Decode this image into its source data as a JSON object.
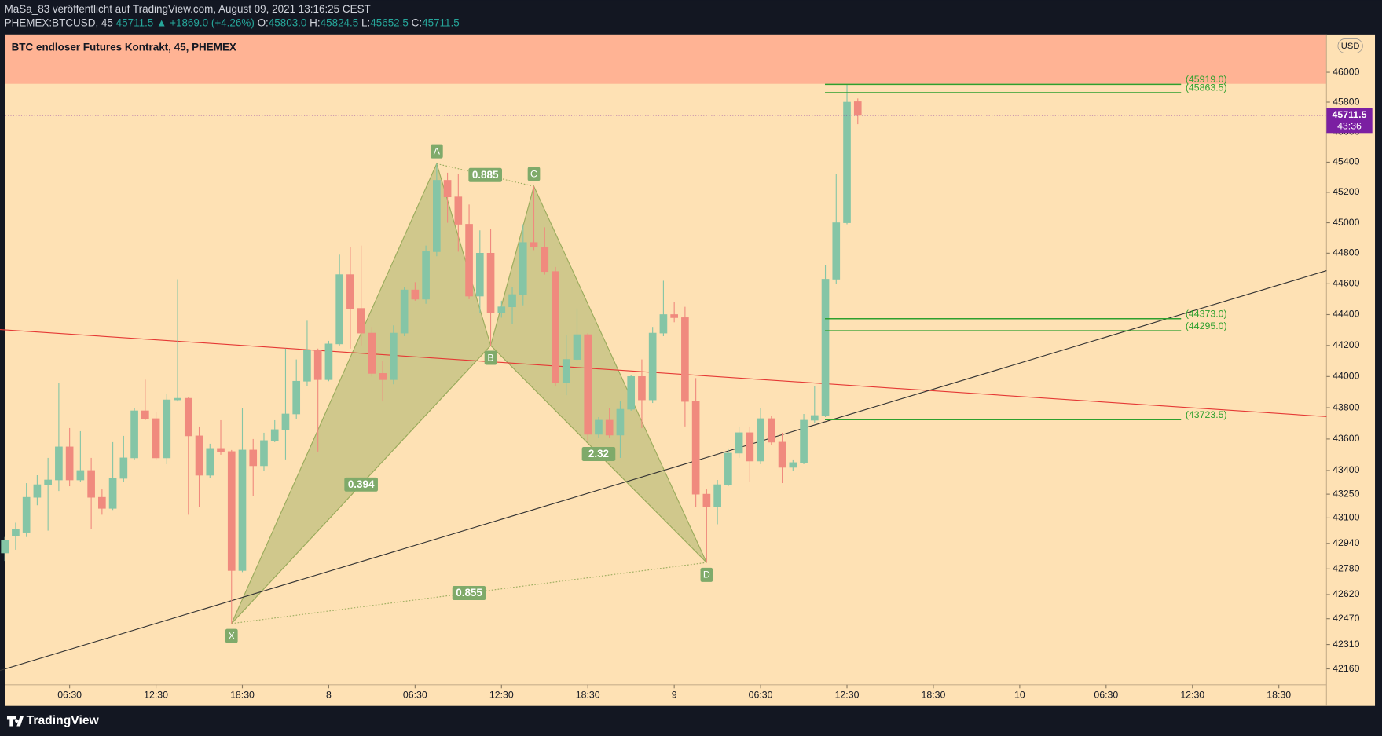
{
  "header": {
    "publisher": "MaSa_83 veröffentlicht auf TradingView.com, August 09, 2021 13:16:25 CEST",
    "symbol": "PHEMEX:BTCUSD, 45",
    "last": "45711.5",
    "change": "▲ +1869.0 (+4.26%)",
    "ohlc": [
      {
        "label": "O:",
        "value": "45803.0"
      },
      {
        "label": "H:",
        "value": "45824.5"
      },
      {
        "label": "L:",
        "value": "45652.5"
      },
      {
        "label": "C:",
        "value": "45711.5"
      }
    ]
  },
  "footer": {
    "brand": "TradingView"
  },
  "chart_data": {
    "type": "candlestick",
    "title": "BTC endloser Futures Kontrakt, 45, PHEMEX",
    "currency": "USD",
    "up_color": "#85c5a6",
    "down_color": "#f08a7e",
    "x": [
      2,
      2.75,
      3.5,
      4.25,
      5,
      5.75,
      6.5,
      7.25,
      8,
      8.75,
      9.5,
      10.25,
      11,
      11.75,
      12.5,
      13.25,
      14,
      14.75,
      15.5,
      16.25,
      17,
      17.75,
      18.5,
      19.25,
      20,
      20.75,
      21.5,
      22.25,
      23,
      23.75,
      24.5,
      25.25,
      26,
      26.75,
      27.5,
      28.25,
      29,
      29.75,
      30.5,
      31.25,
      32,
      32.75,
      33.5,
      34.25,
      35,
      35.75,
      36.5,
      37.25,
      38,
      38.75,
      39.5,
      40.25,
      41,
      41.75,
      42.5,
      43.25,
      44,
      44.75,
      45.5,
      46.25,
      47,
      47.75,
      48.5,
      49.25,
      50,
      50.75,
      51.5,
      52.25,
      53,
      53.75,
      54.5,
      55.25,
      56,
      56.75,
      57.5,
      58.25,
      59,
      59.75,
      60.5,
      61.25
    ],
    "open": [
      42880,
      42990,
      43010,
      43230,
      43310,
      43340,
      43550,
      43340,
      43400,
      43230,
      43160,
      43350,
      43480,
      43780,
      43730,
      43480,
      43850,
      43860,
      43620,
      43370,
      43540,
      43520,
      42770,
      43530,
      43430,
      43590,
      43660,
      43760,
      43970,
      44170,
      43980,
      44210,
      44660,
      44440,
      44280,
      44020,
      43980,
      44280,
      44560,
      44500,
      44810,
      45280,
      45170,
      44990,
      44520,
      44800,
      44410,
      44450,
      44530,
      44870,
      44840,
      44680,
      43960,
      44110,
      44270,
      43630,
      43720,
      43625,
      43790,
      44000,
      43850,
      44280,
      44400,
      44380,
      43840,
      43250,
      43170,
      43310,
      43510,
      43640,
      43460,
      43730,
      43580,
      43420,
      43450,
      43720,
      43750,
      44630,
      45000,
      45803.0
    ],
    "high": [
      42980,
      43070,
      43320,
      43370,
      43480,
      43960,
      43670,
      43650,
      43480,
      43280,
      43580,
      43620,
      43800,
      43980,
      43770,
      43890,
      44630,
      43870,
      43680,
      43570,
      43720,
      43530,
      43800,
      43600,
      43640,
      43720,
      44180,
      44110,
      44360,
      44180,
      44230,
      44790,
      44840,
      44850,
      44320,
      44100,
      44330,
      44580,
      44610,
      44850,
      45390,
      45330,
      45320,
      45120,
      44950,
      44960,
      44490,
      44580,
      44990,
      45240,
      44970,
      44710,
      44270,
      44440,
      44280,
      43740,
      43800,
      43840,
      44010,
      44110,
      44320,
      44620,
      44480,
      44450,
      43990,
      43280,
      43340,
      43540,
      43680,
      43680,
      43800,
      43750,
      43640,
      43470,
      43760,
      43940,
      44720,
      45320,
      45919,
      45824.5
    ],
    "low": [
      42830,
      42900,
      42980,
      43180,
      43020,
      43270,
      43300,
      43330,
      43030,
      43120,
      43150,
      43330,
      43470,
      43720,
      43470,
      43440,
      43840,
      43120,
      43170,
      43350,
      43500,
      42440,
      42760,
      43240,
      43400,
      43580,
      43470,
      43730,
      43940,
      43520,
      43970,
      44200,
      44180,
      44200,
      44000,
      43840,
      43950,
      44260,
      44490,
      44470,
      44780,
      45000,
      44810,
      44500,
      44410,
      44200,
      44380,
      44340,
      44460,
      44820,
      44660,
      43940,
      43880,
      44100,
      43590,
      43610,
      43610,
      43480,
      43780,
      43670,
      43830,
      44260,
      44350,
      43680,
      43170,
      42820,
      43060,
      43300,
      43480,
      43330,
      43440,
      43560,
      43320,
      43400,
      43440,
      43700,
      43740,
      44600,
      44990,
      45652.5
    ],
    "close": [
      42960,
      43030,
      43230,
      43310,
      43340,
      43550,
      43340,
      43400,
      43230,
      43160,
      43350,
      43480,
      43780,
      43730,
      43480,
      43850,
      43860,
      43620,
      43370,
      43540,
      43520,
      42770,
      43530,
      43430,
      43590,
      43660,
      43760,
      43970,
      44170,
      43980,
      44210,
      44660,
      44440,
      44280,
      44020,
      43980,
      44280,
      44560,
      44500,
      44810,
      45280,
      45170,
      44990,
      44520,
      44800,
      44410,
      44450,
      44530,
      44870,
      44840,
      44680,
      43960,
      44110,
      44270,
      43630,
      43720,
      43625,
      43790,
      44000,
      43850,
      44280,
      44400,
      44380,
      43840,
      43250,
      43170,
      43310,
      43510,
      43640,
      43460,
      43730,
      43580,
      43420,
      43450,
      43720,
      43750,
      44630,
      45000,
      45800,
      45711.5
    ],
    "xlim": [
      2.03,
      93.81
    ],
    "xticks": [
      {
        "value": 6.5,
        "label": "06:30"
      },
      {
        "value": 12.5,
        "label": "12:30"
      },
      {
        "value": 18.5,
        "label": "18:30"
      },
      {
        "value": 24.5,
        "label": "8"
      },
      {
        "value": 30.5,
        "label": "06:30"
      },
      {
        "value": 36.5,
        "label": "12:30"
      },
      {
        "value": 42.5,
        "label": "18:30"
      },
      {
        "value": 48.5,
        "label": "9"
      },
      {
        "value": 54.5,
        "label": "06:30"
      },
      {
        "value": 60.5,
        "label": "12:30"
      },
      {
        "value": 66.5,
        "label": "18:30"
      },
      {
        "value": 72.5,
        "label": "10"
      },
      {
        "value": 78.5,
        "label": "06:30"
      },
      {
        "value": 84.5,
        "label": "12:30"
      },
      {
        "value": 90.5,
        "label": "18:30"
      }
    ],
    "ylim": [
      42062,
      46249
    ],
    "log_scale": true,
    "yticks": [
      46000,
      45800,
      45600,
      45400,
      45200,
      45000,
      44800,
      44600,
      44400,
      44200,
      44000,
      43800,
      43600,
      43400,
      43250,
      43100,
      42940,
      42780,
      42620,
      42470,
      42310,
      42160
    ],
    "last_price": 45711.5,
    "countdown": "43:36",
    "levels": [
      {
        "value": 45919.0,
        "label": "(45919.0)"
      },
      {
        "value": 45863.5,
        "label": "(45863.5)"
      },
      {
        "value": 44373.0,
        "label": "(44373.0)"
      },
      {
        "value": 44295.0,
        "label": "(44295.0)"
      },
      {
        "value": 43723.5,
        "label": "(43723.5)"
      }
    ],
    "level_color": "#2ea02e",
    "pattern": {
      "color": "#9aab5c",
      "points": [
        {
          "label": "X",
          "x": 17.75,
          "y": 42440
        },
        {
          "label": "A",
          "x": 32,
          "y": 45390
        },
        {
          "label": "B",
          "x": 35.75,
          "y": 44200
        },
        {
          "label": "C",
          "x": 38.75,
          "y": 45240
        },
        {
          "label": "D",
          "x": 50.75,
          "y": 42820
        }
      ],
      "ratios": [
        0.394,
        0.885,
        2.32,
        0.855
      ]
    },
    "trendlines": [
      {
        "color": "#e53935",
        "x": [
          1.66,
          93.81
        ],
        "y": [
          44303,
          43743
        ]
      },
      {
        "color": "#333333",
        "x": [
          1.66,
          93.81
        ],
        "y": [
          42150,
          44686
        ]
      }
    ]
  }
}
